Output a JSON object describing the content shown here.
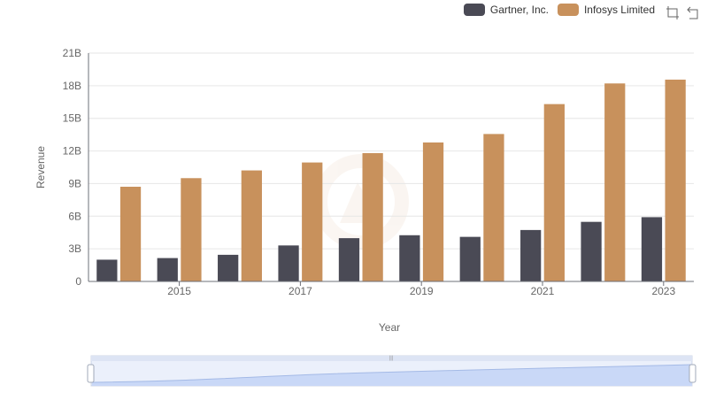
{
  "legend": [
    {
      "name": "Gartner, Inc.",
      "color": "#4a4a55"
    },
    {
      "name": "Infosys Limited",
      "color": "#c8915c"
    }
  ],
  "toolbox": {
    "zoom_icon": "zoom-icon",
    "restore_icon": "restore-icon"
  },
  "chart_data": {
    "type": "bar",
    "xlabel": "Year",
    "ylabel": "Revenue",
    "categories": [
      "2014",
      "2015",
      "2016",
      "2017",
      "2018",
      "2019",
      "2020",
      "2021",
      "2022",
      "2023"
    ],
    "x_tick_labels": [
      "2015",
      "2017",
      "2019",
      "2021",
      "2023"
    ],
    "y_tick_labels": [
      "0",
      "3B",
      "6B",
      "9B",
      "12B",
      "15B",
      "18B",
      "21B"
    ],
    "ylim": [
      0,
      21000000000
    ],
    "grid": true,
    "legend_position": "top-right",
    "series": [
      {
        "name": "Gartner, Inc.",
        "color": "#4a4a55",
        "values": [
          2000000000,
          2150000000,
          2450000000,
          3310000000,
          3980000000,
          4250000000,
          4100000000,
          4730000000,
          5480000000,
          5910000000
        ]
      },
      {
        "name": "Infosys Limited",
        "color": "#c8915c",
        "values": [
          8710000000,
          9500000000,
          10210000000,
          10940000000,
          11800000000,
          12780000000,
          13560000000,
          16310000000,
          18210000000,
          18560000000
        ]
      }
    ]
  }
}
